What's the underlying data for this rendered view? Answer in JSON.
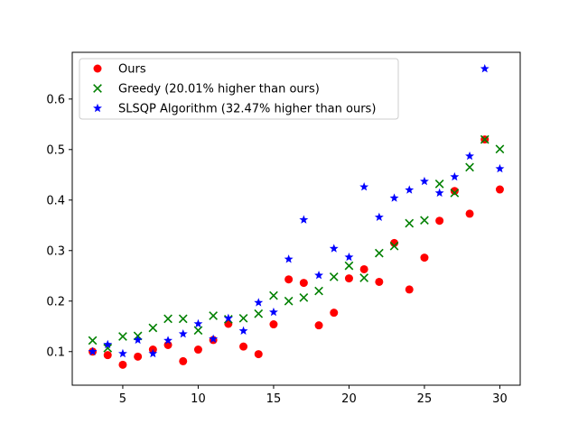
{
  "chart_data": {
    "type": "scatter",
    "title": "",
    "xlabel": "",
    "ylabel": "",
    "xlim": [
      1.65,
      31.35
    ],
    "ylim": [
      0.0335,
      0.6925
    ],
    "xticks": [
      5,
      10,
      15,
      20,
      25,
      30
    ],
    "yticks": [
      0.1,
      0.2,
      0.3,
      0.4,
      0.5,
      0.6
    ],
    "xtick_labels": [
      "5",
      "10",
      "15",
      "20",
      "25",
      "30"
    ],
    "ytick_labels": [
      "0.1",
      "0.2",
      "0.3",
      "0.4",
      "0.5",
      "0.6"
    ],
    "grid": false,
    "legend_position": "top-left",
    "x": [
      3,
      4,
      5,
      6,
      7,
      8,
      9,
      10,
      11,
      12,
      13,
      14,
      15,
      16,
      17,
      18,
      19,
      20,
      21,
      22,
      23,
      24,
      25,
      26,
      27,
      28,
      29,
      30
    ],
    "series": [
      {
        "name": "Ours",
        "marker": "circle",
        "color": "#ff0000",
        "values": [
          0.1,
          0.093,
          0.074,
          0.09,
          0.104,
          0.113,
          0.081,
          0.104,
          0.123,
          0.155,
          0.11,
          0.095,
          0.154,
          0.243,
          0.236,
          0.152,
          0.177,
          0.245,
          0.263,
          0.238,
          0.315,
          0.223,
          0.286,
          0.359,
          0.418,
          0.373,
          0.52,
          0.421
        ]
      },
      {
        "name": "Greedy (20.01% higher than ours)",
        "marker": "x",
        "color": "#008000",
        "values": [
          0.122,
          0.107,
          0.13,
          0.131,
          0.147,
          0.165,
          0.165,
          0.142,
          0.171,
          0.164,
          0.166,
          0.175,
          0.211,
          0.2,
          0.207,
          0.22,
          0.248,
          0.27,
          0.246,
          0.295,
          0.309,
          0.354,
          0.36,
          0.432,
          0.414,
          0.465,
          0.52,
          0.501
        ]
      },
      {
        "name": "SLSQP Algorithm (32.47% higher than ours)",
        "marker": "star",
        "color": "#0000ff",
        "values": [
          0.1,
          0.114,
          0.096,
          0.123,
          0.096,
          0.122,
          0.135,
          0.155,
          0.125,
          0.166,
          0.141,
          0.197,
          0.178,
          0.283,
          0.361,
          0.251,
          0.304,
          0.287,
          0.426,
          0.366,
          0.404,
          0.42,
          0.437,
          0.414,
          0.446,
          0.487,
          0.66,
          0.462
        ]
      }
    ]
  }
}
